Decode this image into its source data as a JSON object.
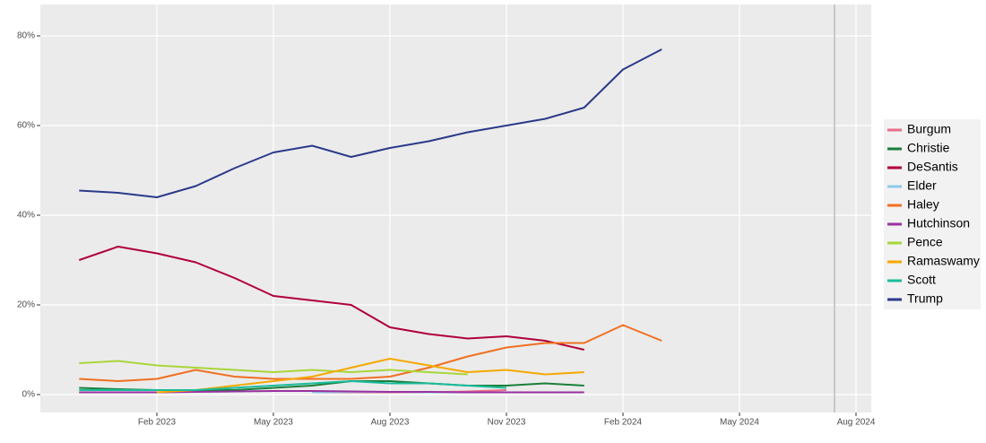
{
  "chart_data": {
    "type": "line",
    "legend": "right",
    "grid": true,
    "x": [
      "2022-12",
      "2023-01",
      "2023-02",
      "2023-03",
      "2023-04",
      "2023-05",
      "2023-06",
      "2023-07",
      "2023-08",
      "2023-09",
      "2023-10",
      "2023-11",
      "2023-12",
      "2024-01",
      "2024-02",
      "2024-03"
    ],
    "xlim": [
      "2022-11",
      "2024-08"
    ],
    "xticks": [
      {
        "value": "2023-02",
        "label": "Feb 2023"
      },
      {
        "value": "2023-05",
        "label": "May 2023"
      },
      {
        "value": "2023-08",
        "label": "Aug 2023"
      },
      {
        "value": "2023-11",
        "label": "Nov 2023"
      },
      {
        "value": "2024-02",
        "label": "Feb 2024"
      },
      {
        "value": "2024-05",
        "label": "May 2024"
      },
      {
        "value": "2024-08",
        "label": "Aug 2024"
      }
    ],
    "ylim": [
      -4,
      87
    ],
    "yticks": [
      {
        "value": 0,
        "label": "0%"
      },
      {
        "value": 20,
        "label": "20%"
      },
      {
        "value": 40,
        "label": "40%"
      },
      {
        "value": 60,
        "label": "60%"
      },
      {
        "value": 80,
        "label": "80%"
      }
    ],
    "series": [
      {
        "name": "Burgum",
        "color": "#e8708a",
        "values": [
          null,
          null,
          null,
          null,
          null,
          null,
          0.5,
          0.5,
          0.5,
          0.5,
          0.7,
          1,
          null,
          null,
          null,
          null
        ]
      },
      {
        "name": "Christie",
        "color": "#1b7f3b",
        "values": [
          1.5,
          1.2,
          1,
          1,
          1,
          1.5,
          2,
          3,
          3,
          2.5,
          2,
          2,
          2.5,
          2,
          null,
          null
        ]
      },
      {
        "name": "DeSantis",
        "color": "#b0003a",
        "values": [
          30,
          33,
          31.5,
          29.5,
          26,
          22,
          21,
          20,
          15,
          13.5,
          12.5,
          13,
          12,
          10,
          null,
          null
        ]
      },
      {
        "name": "Elder",
        "color": "#8ec9ea",
        "values": [
          null,
          null,
          null,
          null,
          null,
          null,
          0.5,
          0.6,
          0.6,
          0.5,
          0.5,
          null,
          null,
          null,
          null,
          null
        ]
      },
      {
        "name": "Haley",
        "color": "#f07020",
        "values": [
          3.5,
          3,
          3.5,
          5.5,
          4,
          3.5,
          3.5,
          3.5,
          4,
          6,
          8.5,
          10.5,
          11.5,
          11.5,
          15.5,
          12
        ]
      },
      {
        "name": "Hutchinson",
        "color": "#9932a0",
        "values": [
          0.5,
          0.5,
          0.5,
          0.6,
          0.7,
          0.8,
          0.8,
          0.7,
          0.6,
          0.6,
          0.5,
          0.5,
          0.5,
          0.5,
          null,
          null
        ]
      },
      {
        "name": "Pence",
        "color": "#a8d63a",
        "values": [
          7,
          7.5,
          6.5,
          6,
          5.5,
          5,
          5.5,
          5,
          5.5,
          5,
          4.5,
          null,
          null,
          null,
          null,
          null
        ]
      },
      {
        "name": "Ramaswamy",
        "color": "#f5a800",
        "values": [
          null,
          null,
          0.5,
          1,
          2,
          3,
          4,
          6,
          8,
          6.5,
          5,
          5.5,
          4.5,
          5,
          null,
          null
        ]
      },
      {
        "name": "Scott",
        "color": "#1abc9c",
        "values": [
          1,
          1,
          1,
          1,
          1.5,
          2,
          2.5,
          3,
          2.5,
          2.5,
          2,
          1.5,
          null,
          null,
          null,
          null
        ]
      },
      {
        "name": "Trump",
        "color": "#2b3a8a",
        "values": [
          45.5,
          45,
          44,
          46.5,
          50.5,
          54,
          55.5,
          53,
          55,
          56.5,
          58.5,
          60,
          61.5,
          64,
          72.5,
          77
        ]
      }
    ]
  }
}
